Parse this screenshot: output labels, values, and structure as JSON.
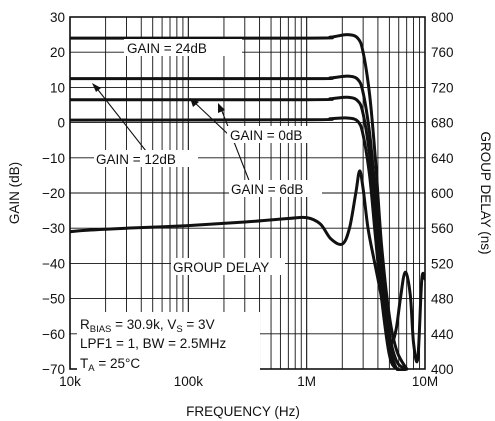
{
  "chart_data": {
    "type": "line",
    "title": "",
    "xlabel": "FREQUENCY (Hz)",
    "ylabel": "GAIN (dB)",
    "y2label": "GROUP DELAY (ns)",
    "xscale": "log",
    "xlim": [
      10000,
      10000000
    ],
    "ylim": [
      -70,
      30
    ],
    "y2lim": [
      400,
      800
    ],
    "grid": true,
    "xticks": [
      {
        "value": 10000,
        "label": "10k"
      },
      {
        "value": 100000,
        "label": "100k"
      },
      {
        "value": 1000000,
        "label": "1M"
      },
      {
        "value": 10000000,
        "label": "10M"
      }
    ],
    "yticks": [
      30,
      20,
      10,
      0,
      -10,
      -20,
      -30,
      -40,
      -50,
      -60,
      -70
    ],
    "y2ticks": [
      800,
      760,
      720,
      680,
      640,
      600,
      560,
      520,
      480,
      440,
      400
    ],
    "series": [
      {
        "name": "GAIN = 24dB",
        "axis": "left",
        "x": [
          10000,
          1000000,
          1600000,
          2200000,
          2700000,
          3000000,
          3400000,
          3800000,
          4300000,
          5000000,
          5800000,
          7000000
        ],
        "y": [
          24,
          24,
          24.3,
          25,
          24,
          20,
          8,
          -10,
          -35,
          -55,
          -65,
          -72
        ]
      },
      {
        "name": "GAIN = 12dB",
        "axis": "left",
        "x": [
          10000,
          1000000,
          1600000,
          2200000,
          2700000,
          3000000,
          3400000,
          3800000,
          4300000,
          5000000,
          5800000,
          7000000
        ],
        "y": [
          12.5,
          12.5,
          12.7,
          13.2,
          12.3,
          8.5,
          -3,
          -20,
          -42,
          -60,
          -68,
          -72
        ]
      },
      {
        "name": "GAIN = 6dB",
        "axis": "left",
        "x": [
          10000,
          1000000,
          1600000,
          2200000,
          2700000,
          3000000,
          3400000,
          3800000,
          4300000,
          5000000,
          5800000,
          7000000
        ],
        "y": [
          6.5,
          6.5,
          6.8,
          7.2,
          6.2,
          2.5,
          -9,
          -26,
          -46,
          -63,
          -70,
          -72
        ]
      },
      {
        "name": "GAIN = 0dB",
        "axis": "left",
        "x": [
          10000,
          1000000,
          1600000,
          2200000,
          2700000,
          3000000,
          3400000,
          3800000,
          4300000,
          5000000,
          5800000,
          7000000
        ],
        "y": [
          0.7,
          0.8,
          1.1,
          1.3,
          0.4,
          -3.5,
          -15,
          -32,
          -50,
          -66,
          -72,
          -72
        ]
      },
      {
        "name": "GROUP DELAY",
        "axis": "right",
        "x": [
          10000,
          15000,
          30000,
          100000,
          300000,
          700000,
          1000000,
          1300000,
          1600000,
          2000000,
          2300000,
          2600000,
          2800000,
          3000000,
          3300000,
          3700000,
          4200000,
          4700000,
          5200000,
          5700000,
          6200000,
          6800000,
          7500000,
          8000000,
          8700000,
          9400000,
          10000000
        ],
        "y": [
          556,
          558,
          560,
          563,
          567,
          571,
          572,
          565,
          548,
          542,
          560,
          600,
          625,
          605,
          560,
          525,
          488,
          450,
          430,
          445,
          480,
          510,
          485,
          430,
          412,
          502,
          502
        ]
      }
    ],
    "annotations": {
      "gain24": "GAIN = 24dB",
      "gain12": "GAIN = 12dB",
      "gain6": "GAIN = 6dB",
      "gain0": "GAIN = 0dB",
      "group_delay": "GROUP DELAY",
      "cond1_main": "R",
      "cond1_sub": "BIAS",
      "cond1_mid": " = 30.9k, V",
      "cond1_sub2": "S",
      "cond1_end": " = 3V",
      "cond2": "LPF1 = 1, BW = 2.5MHz",
      "cond3_main": "T",
      "cond3_sub": "A",
      "cond3_end": " = 25°C"
    }
  }
}
